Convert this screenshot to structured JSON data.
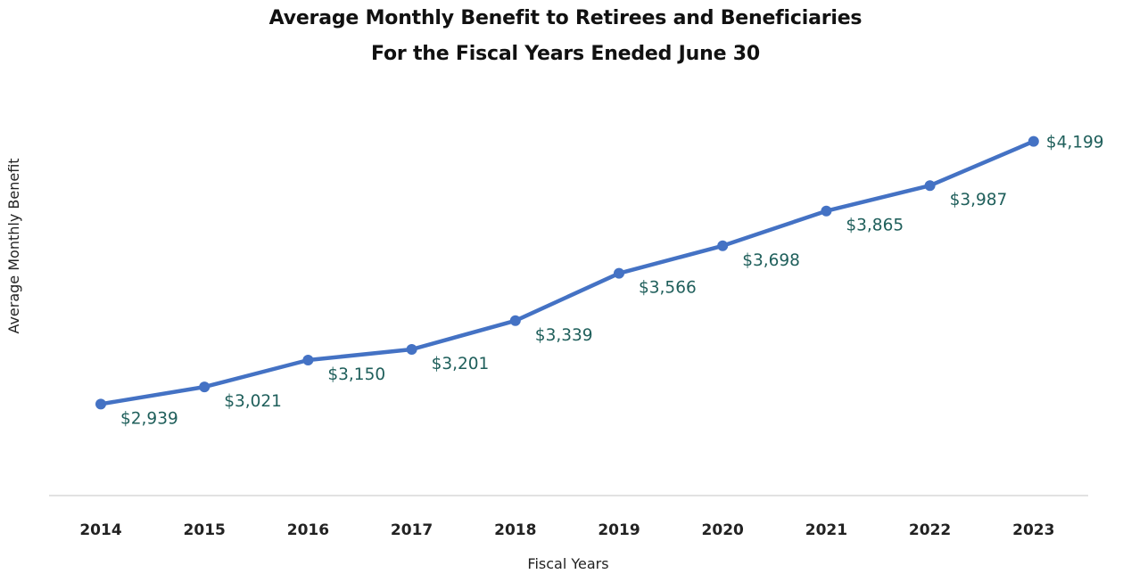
{
  "chart_data": {
    "type": "line",
    "title": "Average Monthly Benefit to Retirees and Beneficiaries",
    "subtitle": "For the Fiscal Years Eneded June 30",
    "xlabel": "Fiscal Years",
    "ylabel": "Average Monthly Benefit",
    "categories": [
      "2014",
      "2015",
      "2016",
      "2017",
      "2018",
      "2019",
      "2020",
      "2021",
      "2022",
      "2023"
    ],
    "series": [
      {
        "values": [
          2939,
          3021,
          3150,
          3201,
          3339,
          3566,
          3698,
          3865,
          3987,
          4199
        ],
        "labels": [
          "$2,939",
          "$3,021",
          "$3,150",
          "$3,201",
          "$3,339",
          "$3,566",
          "$3,698",
          "$3,865",
          "$3,987",
          "$4,199"
        ],
        "color": "#4472c4"
      }
    ],
    "ylim": [
      2500,
      4300
    ],
    "grid": false,
    "legend": "none",
    "colors": {
      "line": "#4472c4",
      "data_label": "#1f5f5b",
      "axis_line": "#d9d9d9",
      "text": "#222222"
    }
  }
}
